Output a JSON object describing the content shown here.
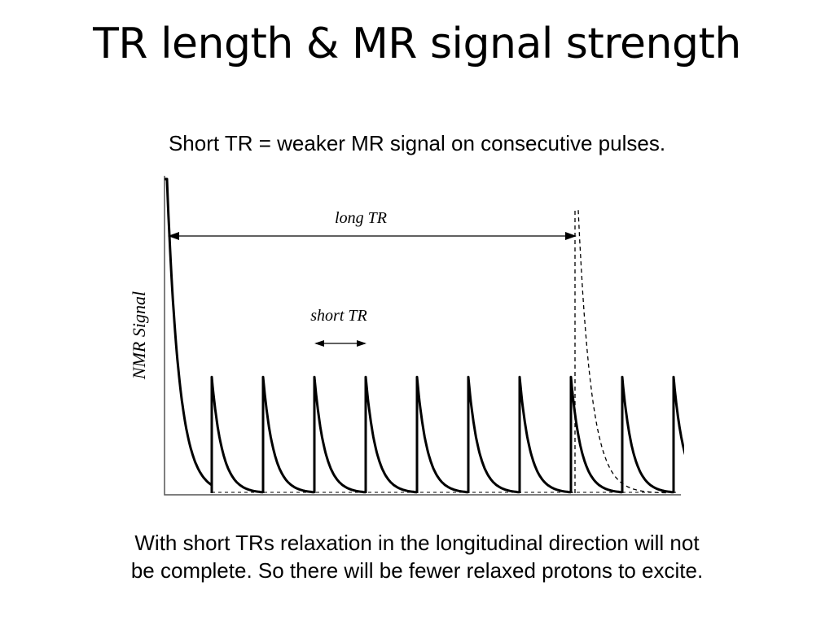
{
  "slide": {
    "title": "TR length & MR signal strength",
    "subtitle": "Short TR = weaker MR signal on consecutive pulses.",
    "caption_lines": [
      "With short TRs relaxation in the longitudinal direction will not",
      "be complete. So there will be fewer relaxed protons to excite."
    ]
  },
  "figure": {
    "y_axis_label": "NMR Signal",
    "long_tr_label": "long TR",
    "short_tr_label": "short TR",
    "initial_peak_level": 1.0,
    "short_tr_peak_level": 0.37,
    "short_tr_pulse_count": 10,
    "colors": {
      "ink": "#000000",
      "axis": "#555555"
    }
  }
}
